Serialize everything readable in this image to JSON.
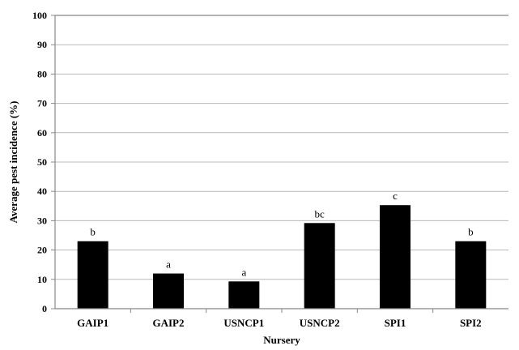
{
  "chart_data": {
    "type": "bar",
    "title": "",
    "xlabel": "Nursery",
    "ylabel": "Average pest incidence (%)",
    "categories": [
      "GAIP1",
      "GAIP2",
      "USNCP1",
      "USNCP2",
      "SPI1",
      "SPI2"
    ],
    "values": [
      23,
      12,
      9.3,
      29.2,
      35.3,
      23
    ],
    "annotations": [
      "b",
      "a",
      "a",
      "bc",
      "c",
      "b"
    ],
    "ylim": [
      0,
      100
    ],
    "yticks": [
      0,
      10,
      20,
      30,
      40,
      50,
      60,
      70,
      80,
      90,
      100
    ],
    "grid": true,
    "legend": "none",
    "colors": {
      "bar": "#000000",
      "grid": "#b8b8b8",
      "axis": "#888888"
    }
  }
}
